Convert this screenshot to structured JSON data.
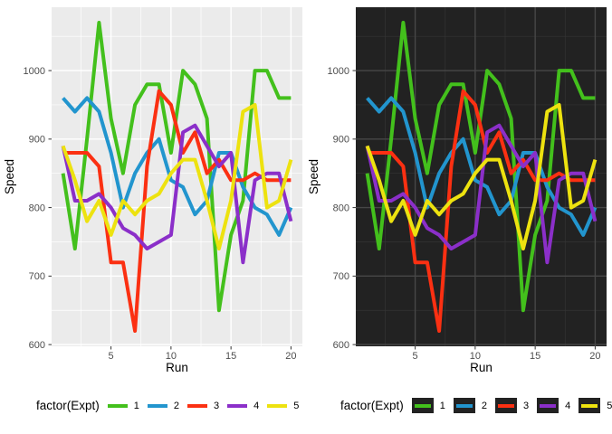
{
  "legend": {
    "title": "factor(Expt)"
  },
  "chart_data": [
    {
      "type": "line",
      "title": "",
      "xlabel": "Run",
      "ylabel": "Speed",
      "legend_title": "factor(Expt)",
      "legend_position": "bottom",
      "grid": true,
      "x": [
        1,
        2,
        3,
        4,
        5,
        6,
        7,
        8,
        9,
        10,
        11,
        12,
        13,
        14,
        15,
        16,
        17,
        18,
        19,
        20
      ],
      "xlim": [
        0.05,
        20.95
      ],
      "ylim": [
        597.5,
        1092.5
      ],
      "xticks": [
        5,
        10,
        15,
        20
      ],
      "yticks": [
        600,
        700,
        800,
        900,
        1000
      ],
      "xticks_minor": [
        2.5,
        7.5,
        12.5,
        17.5
      ],
      "yticks_minor": [
        650,
        750,
        850,
        950,
        1050
      ],
      "theme": {
        "name": "light",
        "background": "#FFFFFF",
        "panel": "#EBEBEB",
        "grid_major": "#FFFFFF",
        "grid_minor": "#FFFFFF",
        "grid_major_w": 1.4,
        "grid_minor_w": 0.7,
        "tick_color": "#333333",
        "tick_label_color": "#4D4D4D",
        "axis_title_color": "#000000",
        "legend_key": "transparent"
      },
      "series": [
        {
          "name": "1",
          "color": "#43C01C",
          "values": [
            850,
            740,
            900,
            1070,
            930,
            850,
            950,
            980,
            980,
            880,
            1000,
            980,
            930,
            650,
            760,
            810,
            1000,
            1000,
            960,
            960
          ]
        },
        {
          "name": "2",
          "color": "#2295CE",
          "values": [
            960,
            940,
            960,
            940,
            880,
            800,
            850,
            880,
            900,
            840,
            830,
            790,
            810,
            880,
            880,
            830,
            800,
            790,
            760,
            800
          ]
        },
        {
          "name": "3",
          "color": "#FB3012",
          "values": [
            880,
            880,
            880,
            860,
            720,
            720,
            620,
            860,
            970,
            950,
            880,
            910,
            850,
            870,
            840,
            840,
            850,
            840,
            840,
            840
          ]
        },
        {
          "name": "4",
          "color": "#8B2FC9",
          "values": [
            890,
            810,
            810,
            820,
            800,
            770,
            760,
            740,
            750,
            760,
            910,
            920,
            890,
            860,
            880,
            720,
            840,
            850,
            850,
            780
          ]
        },
        {
          "name": "5",
          "color": "#EDE20F",
          "values": [
            890,
            840,
            780,
            810,
            760,
            810,
            790,
            810,
            820,
            850,
            870,
            870,
            810,
            740,
            810,
            940,
            950,
            800,
            810,
            870
          ]
        }
      ]
    },
    {
      "type": "line",
      "title": "",
      "xlabel": "Run",
      "ylabel": "Speed",
      "legend_title": "factor(Expt)",
      "legend_position": "bottom",
      "grid": true,
      "x": [
        1,
        2,
        3,
        4,
        5,
        6,
        7,
        8,
        9,
        10,
        11,
        12,
        13,
        14,
        15,
        16,
        17,
        18,
        19,
        20
      ],
      "xlim": [
        0.05,
        20.95
      ],
      "ylim": [
        597.5,
        1092.5
      ],
      "xticks": [
        5,
        10,
        15,
        20
      ],
      "yticks": [
        600,
        700,
        800,
        900,
        1000
      ],
      "xticks_minor": [
        2.5,
        7.5,
        12.5,
        17.5
      ],
      "yticks_minor": [
        650,
        750,
        850,
        950,
        1050
      ],
      "theme": {
        "name": "dark",
        "background": "#FFFFFF",
        "panel": "#222222",
        "grid_major": "#474747",
        "grid_minor": "#343434",
        "grid_major_w": 1.4,
        "grid_minor_w": 0.7,
        "tick_color": "#333333",
        "tick_label_color": "#4D4D4D",
        "axis_title_color": "#000000",
        "legend_key": "#222222"
      },
      "series": [
        {
          "name": "1",
          "color": "#43C01C",
          "values": [
            850,
            740,
            900,
            1070,
            930,
            850,
            950,
            980,
            980,
            880,
            1000,
            980,
            930,
            650,
            760,
            810,
            1000,
            1000,
            960,
            960
          ]
        },
        {
          "name": "2",
          "color": "#2295CE",
          "values": [
            960,
            940,
            960,
            940,
            880,
            800,
            850,
            880,
            900,
            840,
            830,
            790,
            810,
            880,
            880,
            830,
            800,
            790,
            760,
            800
          ]
        },
        {
          "name": "3",
          "color": "#FB3012",
          "values": [
            880,
            880,
            880,
            860,
            720,
            720,
            620,
            860,
            970,
            950,
            880,
            910,
            850,
            870,
            840,
            840,
            850,
            840,
            840,
            840
          ]
        },
        {
          "name": "4",
          "color": "#8B2FC9",
          "values": [
            890,
            810,
            810,
            820,
            800,
            770,
            760,
            740,
            750,
            760,
            910,
            920,
            890,
            860,
            880,
            720,
            840,
            850,
            850,
            780
          ]
        },
        {
          "name": "5",
          "color": "#EDE20F",
          "values": [
            890,
            840,
            780,
            810,
            760,
            810,
            790,
            810,
            820,
            850,
            870,
            870,
            810,
            740,
            810,
            940,
            950,
            800,
            810,
            870
          ]
        }
      ]
    }
  ]
}
